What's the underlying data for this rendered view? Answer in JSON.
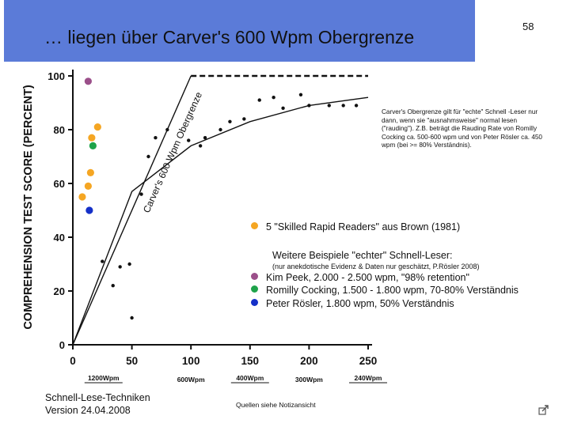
{
  "slide": {
    "title": "… liegen über Carver's 600 Wpm Obergrenze",
    "number": "58",
    "note": "Carver's Obergrenze gilt für \"echte\" Schnell -Leser nur dann, wenn sie \"ausnahmsweise\" normal lesen (\"rauding\"). Z.B. beträgt die Rauding Rate von Romilly Cocking ca. 500-600 wpm und von Peter Rösler ca. 450 wpm (bei >= 80% Verständnis).",
    "footer_line1": "Schnell-Lese-Techniken",
    "footer_line2": "Version 24.04.2008",
    "sources": "Quellen siehe Notizansicht",
    "icons": {
      "corner": "arrow-icon"
    }
  },
  "legend": {
    "brown": "5 \"Skilled Rapid Readers\" aus Brown (1981)",
    "weitere": "Weitere Beispiele \"echter\" Schnell-Leser:",
    "weitere_note": "(nur anekdotische Evidenz & Daten nur geschätzt, P.Rösler 2008)",
    "kim": "Kim Peek, 2.000 - 2.500 wpm, \"98% retention\"",
    "romilly": "Romilly Cocking, 1.500 - 1.800 wpm, 70-80% Verständnis",
    "peter": "Peter Rösler, 1.800 wpm, 50% Verständnis"
  },
  "colors": {
    "banner": "#5b7bd8",
    "orange": "#f5a623",
    "purple": "#9b4f8a",
    "green": "#1ea34a",
    "blue": "#1530c8",
    "ink": "#111111"
  },
  "chart_data": {
    "type": "scatter",
    "ylabel": "COMPREHENSION TEST SCORE (PERCENT)",
    "xlim": [
      0,
      250
    ],
    "ylim": [
      0,
      100
    ],
    "x_ticks": [
      "0",
      "50",
      "100",
      "150",
      "200",
      "250"
    ],
    "y_ticks": [
      "0",
      "20",
      "40",
      "60",
      "80",
      "100"
    ],
    "wpm_row1": [
      "1200Wpm",
      "400Wpm",
      "240Wpm"
    ],
    "wpm_row2": [
      "600Wpm",
      "300Wpm"
    ],
    "carver_label": "Carver's 600 Wpm Obergrenze",
    "series": [
      {
        "name": "",
        "color": "#111111",
        "points": [
          [
            25,
            31
          ],
          [
            34,
            22
          ],
          [
            40,
            29
          ],
          [
            50,
            10
          ],
          [
            48,
            30
          ],
          [
            58,
            56
          ],
          [
            64,
            70
          ],
          [
            70,
            77
          ],
          [
            80,
            80
          ],
          [
            98,
            76
          ],
          [
            108,
            74
          ],
          [
            112,
            77
          ],
          [
            125,
            80
          ],
          [
            133,
            83
          ],
          [
            145,
            84
          ],
          [
            158,
            91
          ],
          [
            170,
            92
          ],
          [
            178,
            88
          ],
          [
            193,
            93
          ],
          [
            200,
            89
          ],
          [
            217,
            89
          ],
          [
            229,
            89
          ],
          [
            240,
            89
          ]
        ]
      },
      {
        "name": "5 \"Skilled Rapid Readers\" aus Brown (1981)",
        "color": "#f5a623",
        "points": [
          [
            8,
            55
          ],
          [
            13,
            59
          ],
          [
            15,
            64
          ],
          [
            16,
            77
          ],
          [
            21,
            81
          ]
        ]
      },
      {
        "name": "Kim Peek",
        "color": "#9b4f8a",
        "points": [
          [
            13,
            98
          ]
        ]
      },
      {
        "name": "Romilly Cocking",
        "color": "#1ea34a",
        "points": [
          [
            17,
            74
          ]
        ]
      },
      {
        "name": "Peter Rösler",
        "color": "#1530c8",
        "points": [
          [
            14,
            50
          ]
        ]
      }
    ],
    "fit_line": [
      [
        0,
        0
      ],
      [
        50,
        57
      ],
      [
        100,
        74
      ],
      [
        150,
        83
      ],
      [
        200,
        89
      ],
      [
        250,
        92
      ]
    ],
    "carver_limit": {
      "x_start": 100,
      "x_end": 250,
      "y": 100
    },
    "grid": false
  }
}
